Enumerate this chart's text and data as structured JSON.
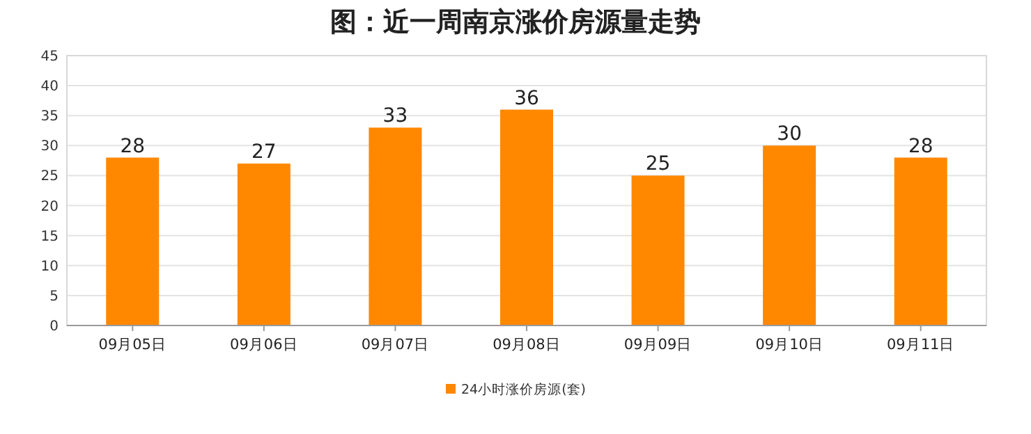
{
  "chart_data": {
    "type": "bar",
    "title": "图：近一周南京涨价房源量走势",
    "categories": [
      "09月05日",
      "09月06日",
      "09月07日",
      "09月08日",
      "09月09日",
      "09月10日",
      "09月11日"
    ],
    "series": [
      {
        "name": "24小时涨价房源(套)",
        "color": "#ff8800",
        "values": [
          28,
          27,
          33,
          36,
          25,
          30,
          28
        ]
      }
    ],
    "ylim": [
      0,
      45
    ],
    "yticks": [
      0,
      5,
      10,
      15,
      20,
      25,
      30,
      35,
      40,
      45
    ],
    "grid": "y",
    "legend": "bottom",
    "data_labels": true
  }
}
